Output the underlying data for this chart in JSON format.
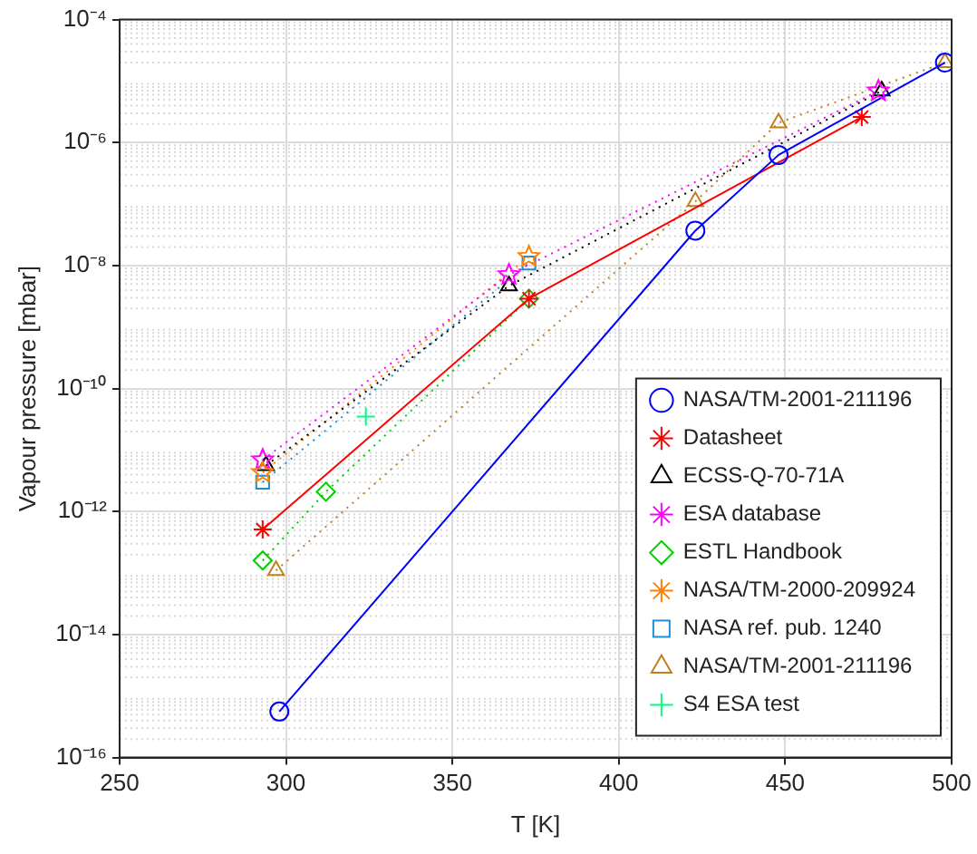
{
  "chart_data": {
    "type": "line",
    "xlabel": "T [K]",
    "ylabel": "Vapour pressure [mbar]",
    "log": "y",
    "grid": true,
    "legend": "bottom right",
    "xlim": [
      250,
      500
    ],
    "xticks": [
      250,
      300,
      350,
      400,
      450,
      500
    ],
    "ylim": [
      1e-16,
      0.0001
    ],
    "yticks": [
      {
        "value": 1e-16,
        "label": "10⁻¹⁶"
      },
      {
        "value": 1e-14,
        "label": "10⁻¹⁴"
      },
      {
        "value": 1e-12,
        "label": "10⁻¹²"
      },
      {
        "value": 1e-10,
        "label": "10⁻¹⁰"
      },
      {
        "value": 1e-08,
        "label": "10⁻⁸"
      },
      {
        "value": 1e-06,
        "label": "10⁻⁶"
      },
      {
        "value": 0.0001,
        "label": "10⁻⁴"
      }
    ],
    "series": [
      {
        "name": "NASA/TM-2001-211196",
        "color": "#0000ff",
        "marker": "circle",
        "line_style": "solid",
        "x": [
          298,
          423,
          448,
          498
        ],
        "values": [
          5.6e-16,
          3.7e-08,
          6.3e-07,
          2e-05
        ]
      },
      {
        "name": "Datasheet",
        "color": "#ff0000",
        "marker": "cross",
        "line_style": "solid",
        "x": [
          293,
          373,
          473
        ],
        "values": [
          5.1e-13,
          2.9e-09,
          2.6e-06
        ]
      },
      {
        "name": "ECSS-Q-70-71A",
        "color": "#000000",
        "marker": "triangle",
        "line_style": "dotted",
        "x": [
          294,
          367,
          479
        ],
        "values": [
          5.6e-12,
          4.7e-09,
          6.9e-06
        ]
      },
      {
        "name": "ESA database",
        "color": "#ff00ff",
        "marker": "star",
        "line_style": "dotted",
        "x": [
          293,
          367,
          478
        ],
        "values": [
          6.9e-12,
          7.1e-09,
          6.9e-06
        ]
      },
      {
        "name": "ESTL Handbook",
        "color": "#00cc00",
        "marker": "diamond",
        "line_style": "dotted",
        "x": [
          293,
          312,
          373
        ],
        "values": [
          1.6e-13,
          2.1e-12,
          2.9e-09
        ]
      },
      {
        "name": "NASA/TM-2000-209924",
        "color": "#ff8000",
        "marker": "star",
        "line_style": "dotted",
        "x": [
          293,
          373
        ],
        "values": [
          4.3e-12,
          1.4e-08
        ]
      },
      {
        "name": "NASA ref. pub. 1240",
        "color": "#1f8fd0",
        "marker": "square",
        "line_style": "dotted",
        "x": [
          293,
          373
        ],
        "values": [
          3e-12,
          1.1e-08
        ]
      },
      {
        "name": "NASA/TM-2001-211196",
        "color": "#c08020",
        "marker": "triangle",
        "line_style": "dotted",
        "x": [
          297,
          423,
          448,
          498
        ],
        "values": [
          1.1e-13,
          1.1e-07,
          2.1e-06,
          2e-05
        ]
      },
      {
        "name": "S4 ESA test",
        "color": "#00ff80",
        "marker": "cross",
        "line_style": "dotted",
        "x": [
          324
        ],
        "values": [
          3.5e-11
        ]
      }
    ]
  }
}
